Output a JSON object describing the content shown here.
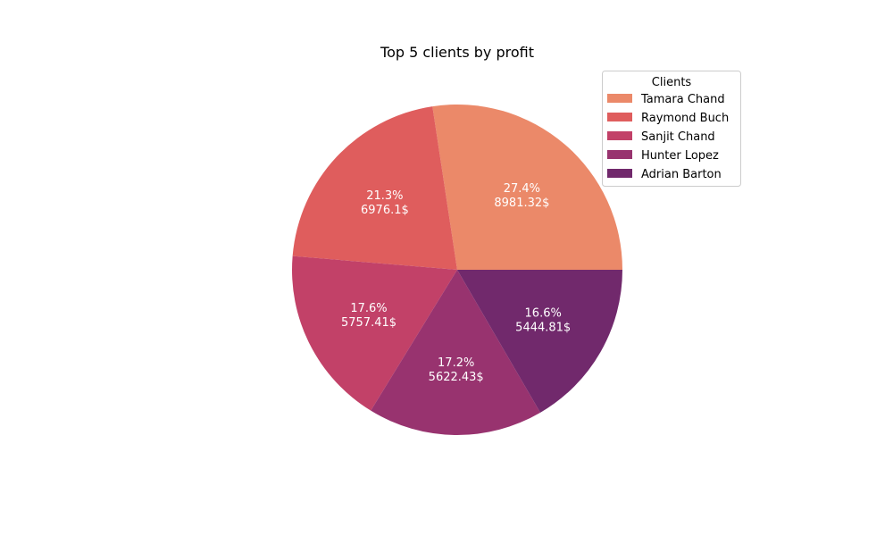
{
  "chart_data": {
    "type": "pie",
    "title": "Top 5 clients by profit",
    "legend_title": "Clients",
    "legend_position": "top-right",
    "start_angle_deg": 0,
    "direction": "counterclockwise",
    "value_suffix": "$",
    "slices": [
      {
        "label": "Tamara Chand",
        "value": 8981.32,
        "percent": "27.4%",
        "value_text": "8981.32$",
        "color": "#eb8969"
      },
      {
        "label": "Raymond Buch",
        "value": 6976.1,
        "percent": "21.3%",
        "value_text": "6976.1$",
        "color": "#df5d5d"
      },
      {
        "label": "Sanjit Chand",
        "value": 5757.41,
        "percent": "17.6%",
        "value_text": "5757.41$",
        "color": "#c24168"
      },
      {
        "label": "Hunter Lopez",
        "value": 5622.43,
        "percent": "17.2%",
        "value_text": "5622.43$",
        "color": "#98336f"
      },
      {
        "label": "Adrian Barton",
        "value": 5444.81,
        "percent": "16.6%",
        "value_text": "5444.81$",
        "color": "#71296c"
      }
    ]
  }
}
